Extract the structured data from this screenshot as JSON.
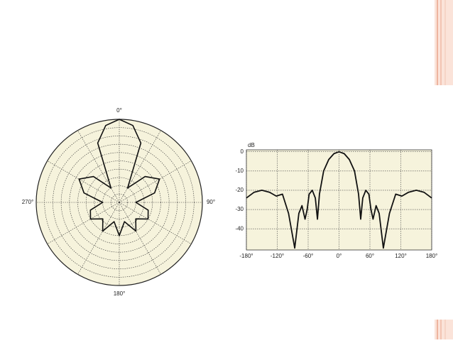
{
  "chart_data": [
    {
      "type": "polar",
      "thetaticks": [
        {
          "value": 0,
          "label": "0°"
        },
        {
          "value": 90,
          "label": "90°"
        },
        {
          "value": 180,
          "label": "180°"
        },
        {
          "value": 270,
          "label": "270°"
        }
      ],
      "grid_angles": [
        0,
        30,
        60,
        90,
        120,
        150,
        180,
        210,
        240,
        270,
        300,
        330
      ],
      "rlim": [
        -50,
        0
      ],
      "rticks": [
        -45,
        -40,
        -35,
        -30,
        -25,
        -20,
        -15,
        -10,
        -5,
        0
      ],
      "background": "#f6f3dc",
      "series": [
        {
          "color": "#111111",
          "theta": [
            0,
            10,
            20,
            30,
            45,
            60,
            75,
            90,
            105,
            120,
            135,
            150,
            165,
            180,
            195,
            210,
            225,
            240,
            255,
            270,
            285,
            300,
            315,
            330,
            340,
            350
          ],
          "values": [
            0,
            -3,
            -12,
            -40,
            -28,
            -22,
            -28,
            -40,
            -32,
            -30,
            -36,
            -30,
            -38,
            -30,
            -38,
            -30,
            -36,
            -30,
            -32,
            -40,
            -28,
            -22,
            -28,
            -40,
            -12,
            -3
          ]
        }
      ]
    },
    {
      "type": "line",
      "y_label": "dB",
      "xlim": [
        -180,
        180
      ],
      "xticks": [
        {
          "value": -180,
          "label": "-180°"
        },
        {
          "value": -120,
          "label": "-120°"
        },
        {
          "value": -60,
          "label": "-60°"
        },
        {
          "value": 0,
          "label": "0°"
        },
        {
          "value": 60,
          "label": "60°"
        },
        {
          "value": 120,
          "label": "120°"
        },
        {
          "value": 180,
          "label": "180°"
        }
      ],
      "ylim": [
        -51,
        1
      ],
      "yticks": [
        0,
        -10,
        -20,
        -30,
        -40
      ],
      "grid": true,
      "background": "#f6f3dc",
      "series": [
        {
          "color": "#111111",
          "x": [
            -180,
            -165,
            -150,
            -135,
            -122,
            -110,
            -98,
            -86,
            -78,
            -72,
            -66,
            -62,
            -58,
            -52,
            -46,
            -42,
            -38,
            -30,
            -20,
            -10,
            0,
            10,
            20,
            30,
            38,
            42,
            46,
            52,
            58,
            62,
            66,
            72,
            78,
            86,
            98,
            110,
            122,
            135,
            150,
            165,
            180
          ],
          "values": [
            -24,
            -21,
            -20,
            -21,
            -23,
            -22,
            -32,
            -50,
            -32,
            -28,
            -35,
            -30,
            -22,
            -20,
            -24,
            -35,
            -22,
            -10,
            -4,
            -1,
            0,
            -1,
            -4,
            -10,
            -22,
            -35,
            -24,
            -20,
            -22,
            -30,
            -35,
            -28,
            -32,
            -50,
            -32,
            -22,
            -23,
            -21,
            -20,
            -21,
            -24
          ]
        }
      ]
    }
  ]
}
